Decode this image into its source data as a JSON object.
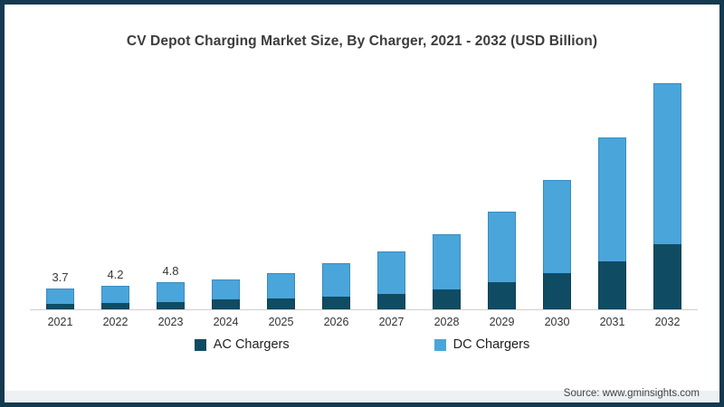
{
  "frame": {
    "border_color": "#15394F",
    "border_accent_color": "#2F6F8C",
    "background": "#ffffff",
    "footer_strip_color": "#edf1f4"
  },
  "title": "CV Depot Charging Market Size, By Charger, 2021 - 2032 (USD Billion)",
  "source": "Source: www.gminsights.com",
  "legend": {
    "items": [
      {
        "label": "AC Chargers",
        "color": "#0F4C64"
      },
      {
        "label": "DC Chargers",
        "color": "#4AA5DB"
      }
    ],
    "position": "bottom-center"
  },
  "chart_data": {
    "type": "bar",
    "stacked": true,
    "title": "CV Depot Charging Market Size, By Charger, 2021 - 2032 (USD Billion)",
    "xlabel": "",
    "ylabel": "",
    "y_axis_visible": false,
    "gridlines": false,
    "ylim": [
      0,
      42
    ],
    "unit": "USD Billion",
    "categories": [
      "2021",
      "2022",
      "2023",
      "2024",
      "2025",
      "2026",
      "2027",
      "2028",
      "2029",
      "2030",
      "2031",
      "2032"
    ],
    "series": [
      {
        "name": "AC Chargers",
        "color": "#0F4C64",
        "values": [
          0.9,
          1.1,
          1.3,
          1.7,
          1.9,
          2.2,
          2.7,
          3.6,
          4.8,
          6.4,
          8.5,
          11.6
        ]
      },
      {
        "name": "DC Chargers",
        "color": "#4AA5DB",
        "values": [
          2.8,
          3.1,
          3.5,
          3.7,
          4.6,
          6.1,
          7.6,
          9.8,
          12.7,
          16.7,
          22.1,
          28.8
        ]
      }
    ],
    "totals": [
      3.7,
      4.2,
      4.8,
      5.4,
      6.5,
      8.3,
      10.3,
      13.4,
      17.5,
      23.1,
      30.6,
      40.4
    ],
    "data_labels": {
      "2021": "3.7",
      "2022": "4.2",
      "2023": "4.8"
    }
  }
}
